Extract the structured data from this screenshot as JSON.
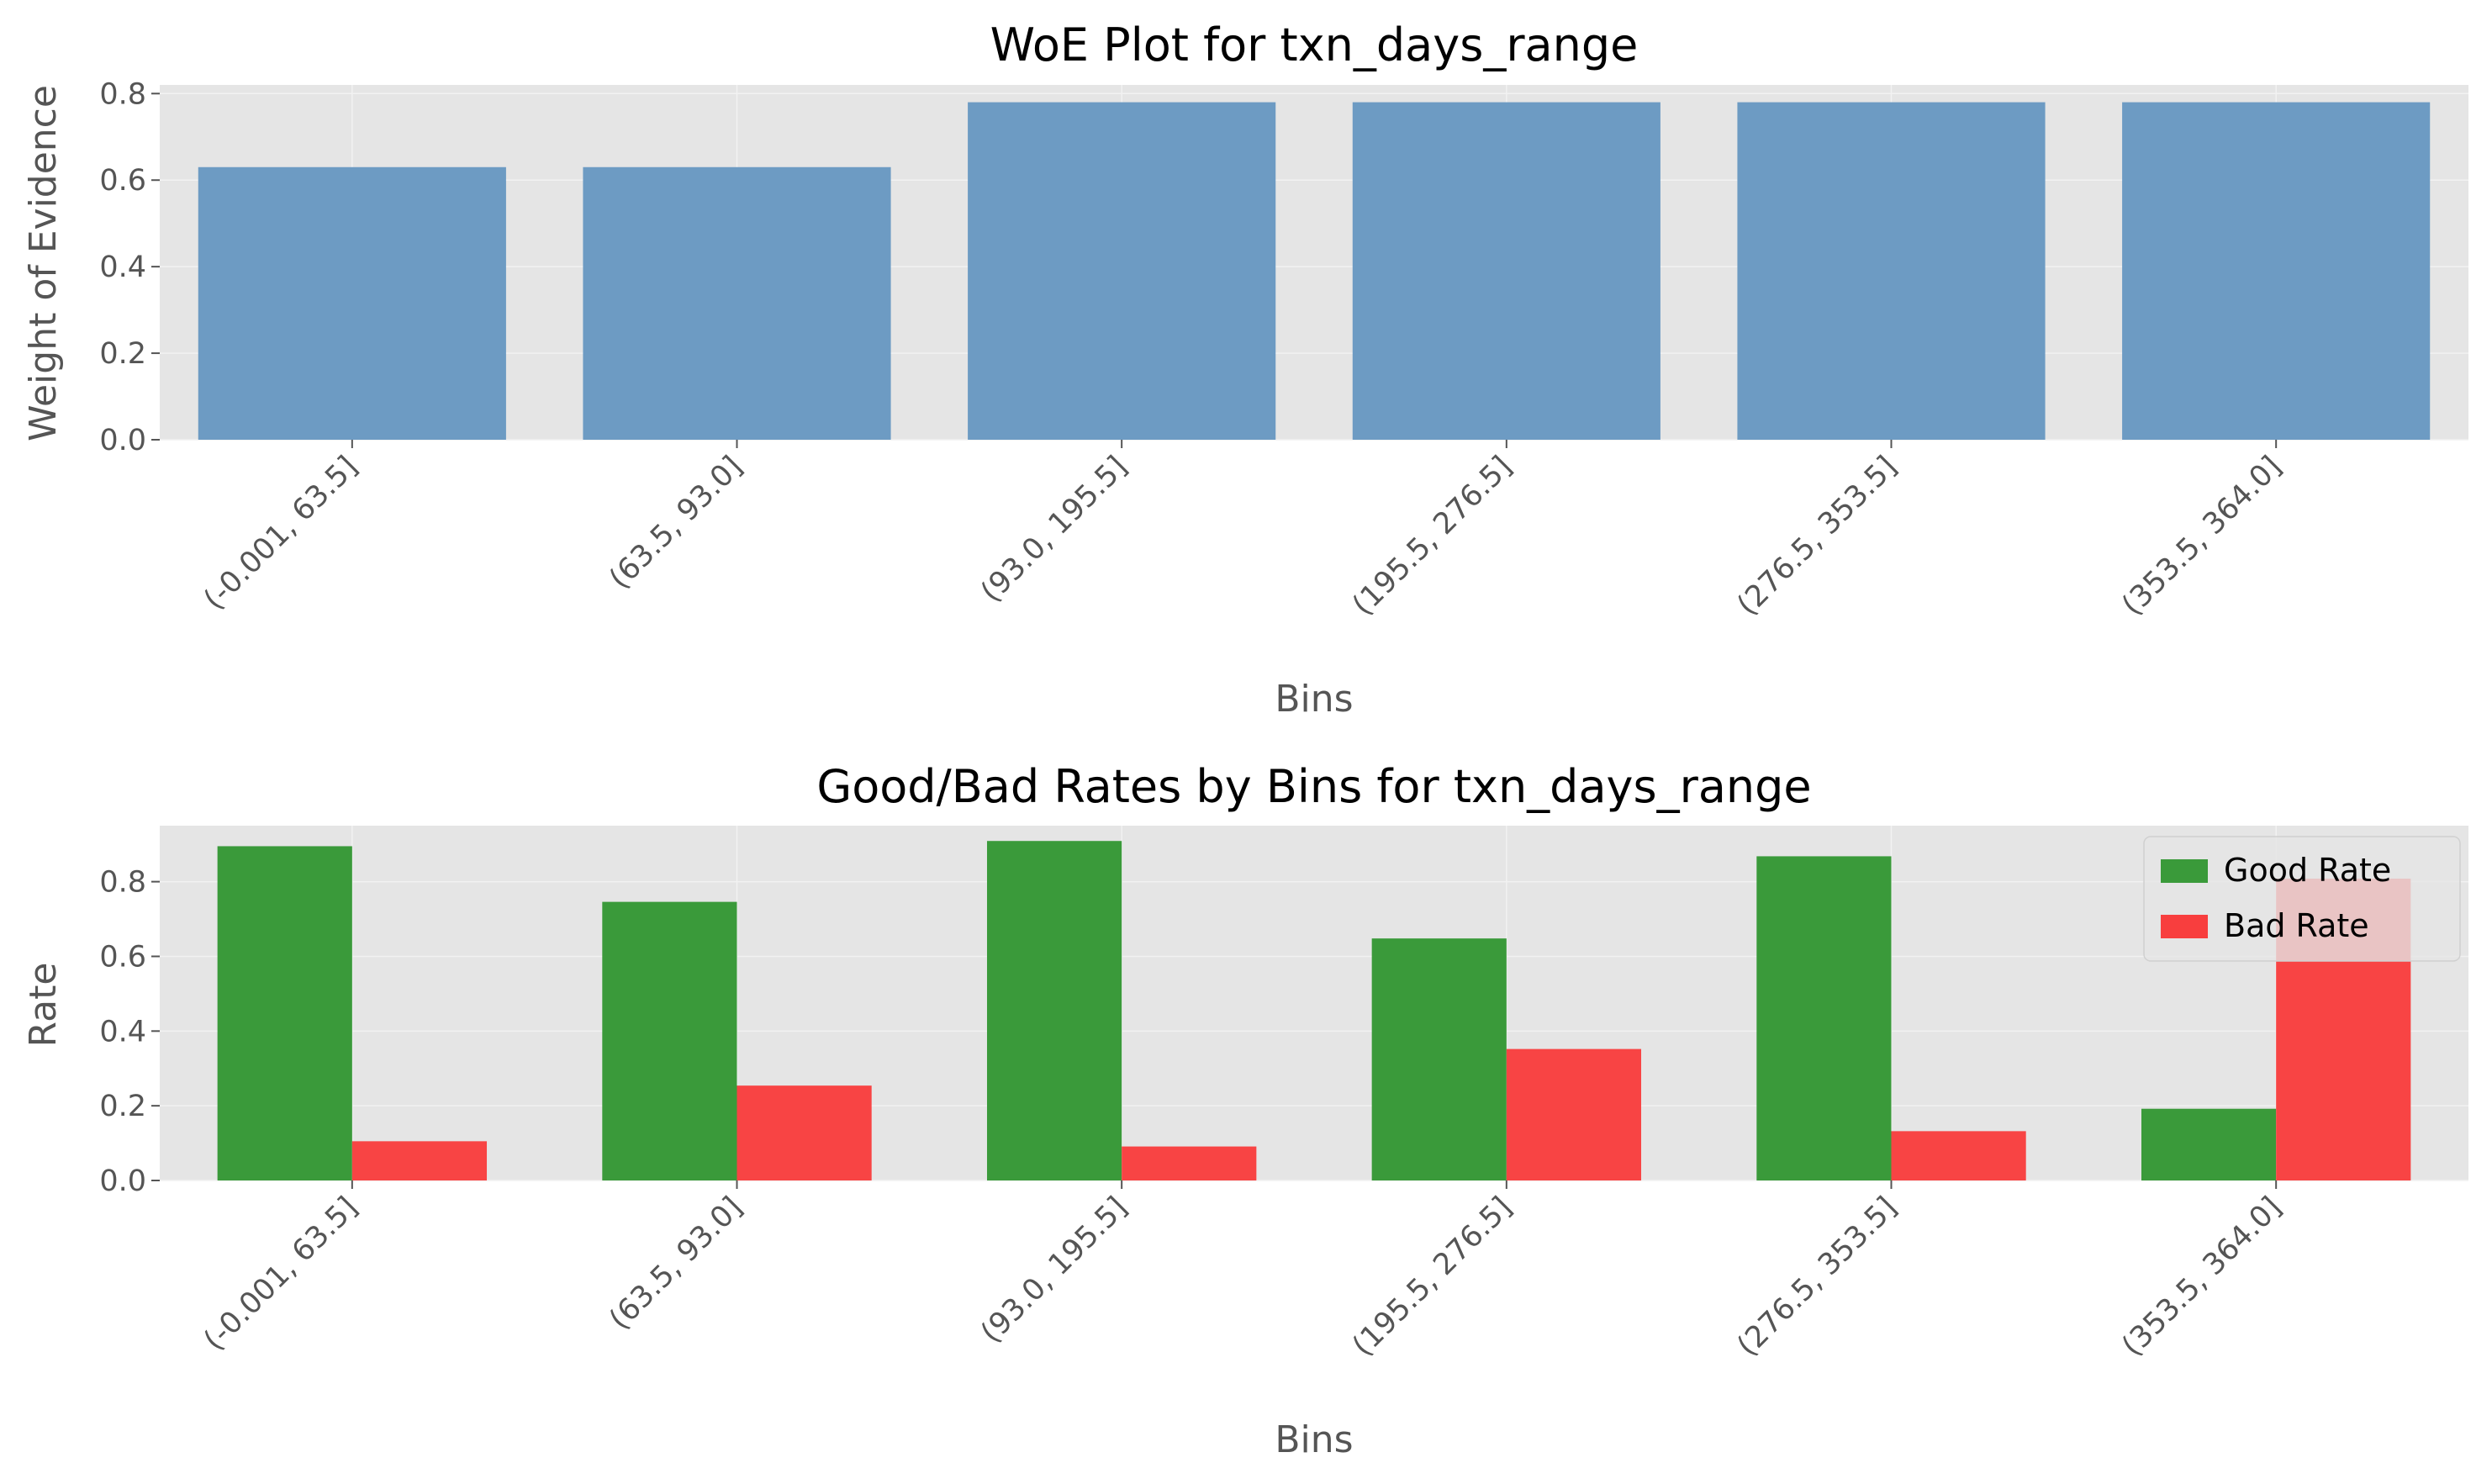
{
  "colors": {
    "plot_bg": "#e5e5e5",
    "grid": "#f2f2f2",
    "woe_bar": "#6d9bc3",
    "good": "#3a9a3a",
    "bad": "#f83e3e",
    "tick": "#555555"
  },
  "chart_data": [
    {
      "type": "bar",
      "title": "WoE Plot for txn_days_range",
      "xlabel": "Bins",
      "ylabel": "Weight of Evidence",
      "categories": [
        "(-0.001, 63.5]",
        "(63.5, 93.0]",
        "(93.0, 195.5]",
        "(195.5, 276.5]",
        "(276.5, 353.5]",
        "(353.5, 364.0]"
      ],
      "values": [
        0.63,
        0.63,
        0.78,
        0.78,
        0.78,
        0.78
      ],
      "ylim": [
        0,
        0.82
      ],
      "yticks": [
        "0.0",
        "0.2",
        "0.4",
        "0.6",
        "0.8"
      ],
      "grid": true
    },
    {
      "type": "bar",
      "title": "Good/Bad Rates by Bins for txn_days_range",
      "xlabel": "Bins",
      "ylabel": "Rate",
      "categories": [
        "(-0.001, 63.5]",
        "(63.5, 93.0]",
        "(93.0, 195.5]",
        "(195.5, 276.5]",
        "(276.5, 353.5]",
        "(353.5, 364.0]"
      ],
      "series": [
        {
          "name": "Good Rate",
          "values": [
            0.895,
            0.746,
            0.909,
            0.648,
            0.868,
            0.192
          ]
        },
        {
          "name": "Bad Rate",
          "values": [
            0.105,
            0.254,
            0.091,
            0.352,
            0.132,
            0.808
          ]
        }
      ],
      "ylim": [
        0,
        0.95
      ],
      "yticks": [
        "0.0",
        "0.2",
        "0.4",
        "0.6",
        "0.8"
      ],
      "legend": "upper-right",
      "grid": true
    }
  ]
}
